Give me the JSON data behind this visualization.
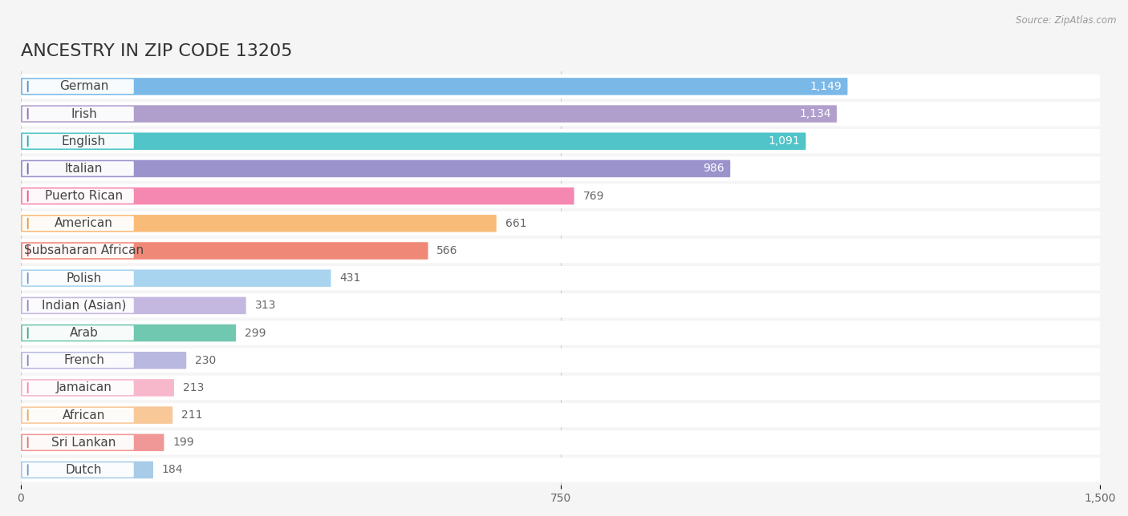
{
  "title": "ANCESTRY IN ZIP CODE 13205",
  "source": "Source: ZipAtlas.com",
  "categories": [
    "German",
    "Irish",
    "English",
    "Italian",
    "Puerto Rican",
    "American",
    "Subsaharan African",
    "Polish",
    "Indian (Asian)",
    "Arab",
    "French",
    "Jamaican",
    "African",
    "Sri Lankan",
    "Dutch"
  ],
  "values": [
    1149,
    1134,
    1091,
    986,
    769,
    661,
    566,
    431,
    313,
    299,
    230,
    213,
    211,
    199,
    184
  ],
  "bar_colors": [
    "#7ab8e8",
    "#b09fcc",
    "#50c4c8",
    "#9b93cc",
    "#f588b0",
    "#f9bc78",
    "#f08878",
    "#a8d4f0",
    "#c4b8e0",
    "#70c8b0",
    "#b8b8e0",
    "#f8b8cc",
    "#f8c898",
    "#f09898",
    "#a8cce8"
  ],
  "label_dot_colors": [
    "#5590c8",
    "#9070b8",
    "#30a8a8",
    "#7068b0",
    "#e85888",
    "#e89840",
    "#d85858",
    "#7898c8",
    "#9888c0",
    "#40a888",
    "#8888c0",
    "#f888a8",
    "#e8a858",
    "#d87878",
    "#7898c8"
  ],
  "xlim": [
    0,
    1500
  ],
  "xticks": [
    0,
    750,
    1500
  ],
  "bg_color": "#f5f5f5",
  "row_bg_color": "#ffffff",
  "title_fontsize": 16,
  "label_fontsize": 11,
  "value_fontsize": 10,
  "value_threshold": 900
}
